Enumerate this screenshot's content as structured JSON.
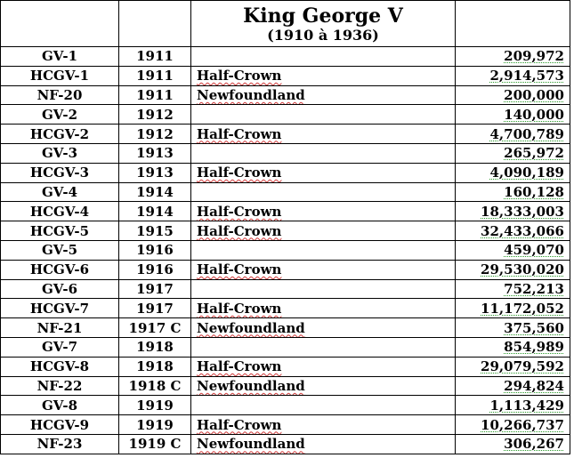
{
  "header": {
    "title": "King George V",
    "subtitle": "(1910 à 1936)"
  },
  "rows": [
    {
      "code": "GV-1",
      "year": "1911",
      "type": "",
      "mintage": "209,972"
    },
    {
      "code": "HCGV-1",
      "year": "1911",
      "type": "Half-Crown",
      "mintage": "2,914,573"
    },
    {
      "code": "NF-20",
      "year": "1911",
      "type": "Newfoundland",
      "mintage": "200,000"
    },
    {
      "code": "GV-2",
      "year": "1912",
      "type": "",
      "mintage": "140,000"
    },
    {
      "code": "HCGV-2",
      "year": "1912",
      "type": "Half-Crown",
      "mintage": "4,700,789"
    },
    {
      "code": "GV-3",
      "year": "1913",
      "type": "",
      "mintage": "265,972"
    },
    {
      "code": "HCGV-3",
      "year": "1913",
      "type": "Half-Crown",
      "mintage": "4,090,189"
    },
    {
      "code": "GV-4",
      "year": "1914",
      "type": "",
      "mintage": "160,128"
    },
    {
      "code": "HCGV-4",
      "year": "1914",
      "type": "Half-Crown",
      "mintage": "18,333,003"
    },
    {
      "code": "HCGV-5",
      "year": "1915",
      "type": "Half-Crown",
      "mintage": "32,433,066"
    },
    {
      "code": "GV-5",
      "year": "1916",
      "type": "",
      "mintage": "459,070"
    },
    {
      "code": "HCGV-6",
      "year": "1916",
      "type": "Half-Crown",
      "mintage": "29,530,020"
    },
    {
      "code": "GV-6",
      "year": "1917",
      "type": "",
      "mintage": "752,213"
    },
    {
      "code": "HCGV-7",
      "year": "1917",
      "type": "Half-Crown",
      "mintage": "11,172,052"
    },
    {
      "code": "NF-21",
      "year": "1917 C",
      "type": "Newfoundland",
      "mintage": "375,560"
    },
    {
      "code": "GV-7",
      "year": "1918",
      "type": "",
      "mintage": "854,989"
    },
    {
      "code": "HCGV-8",
      "year": "1918",
      "type": "Half-Crown",
      "mintage": "29,079,592"
    },
    {
      "code": "NF-22",
      "year": "1918 C",
      "type": "Newfoundland",
      "mintage": "294,824"
    },
    {
      "code": "GV-8",
      "year": "1919",
      "type": "",
      "mintage": "1,113,429"
    },
    {
      "code": "HCGV-9",
      "year": "1919",
      "type": "Half-Crown",
      "mintage": "10,266,737"
    },
    {
      "code": "NF-23",
      "year": "1919 C",
      "type": "Newfoundland",
      "mintage": "306,267"
    }
  ]
}
